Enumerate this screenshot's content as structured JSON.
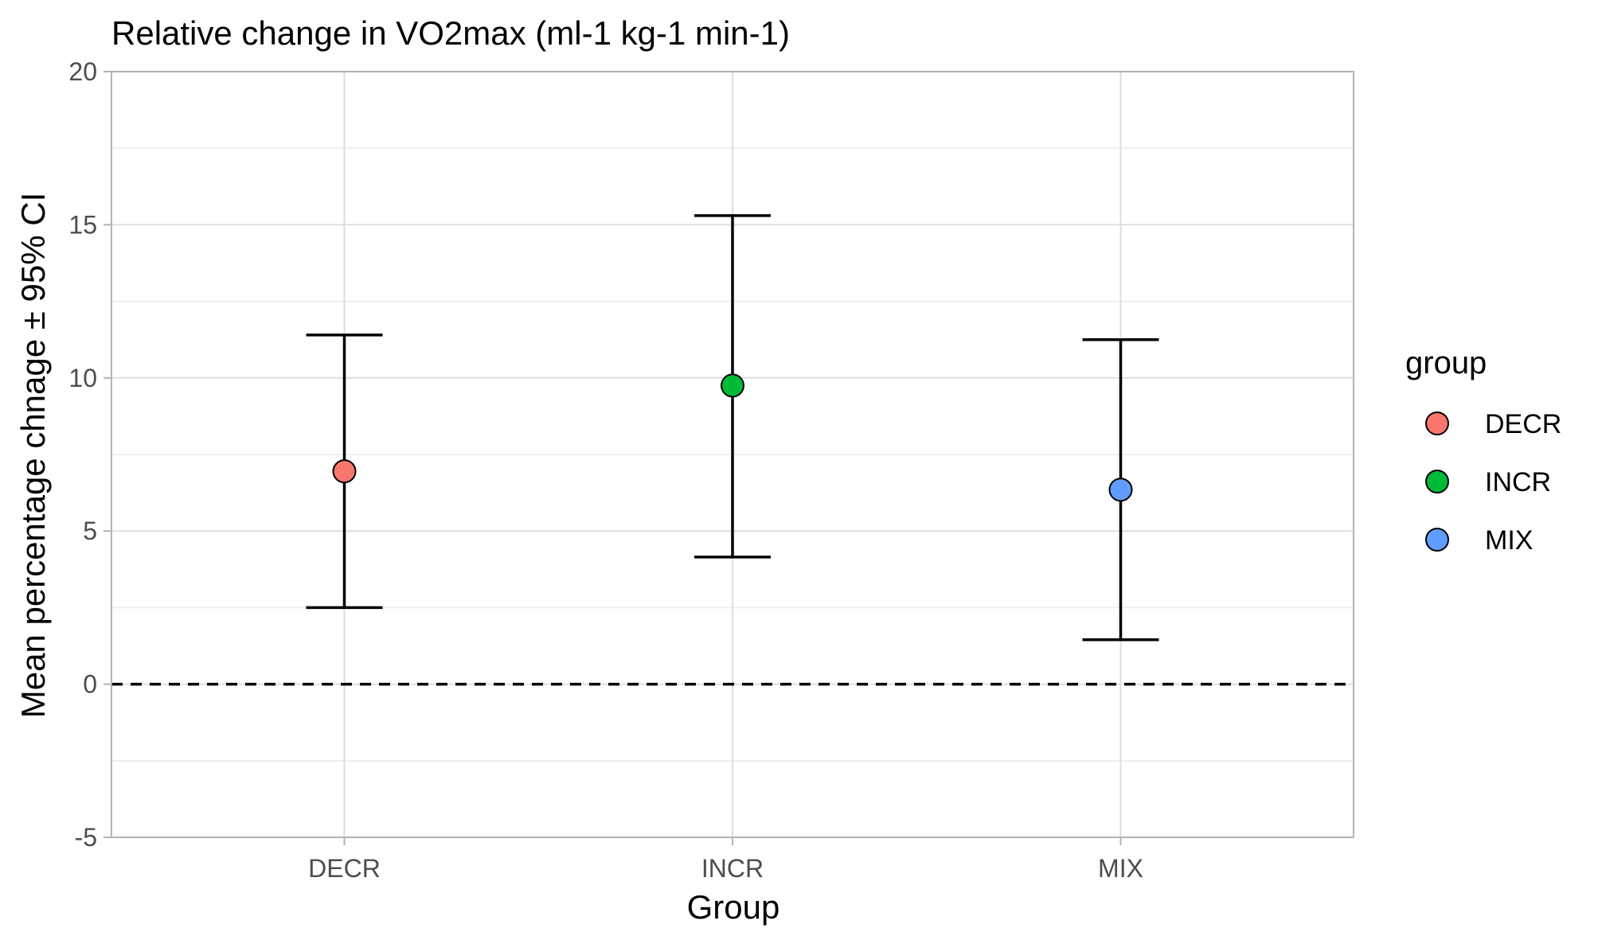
{
  "chart_data": {
    "type": "scatter",
    "title": "Relative change in  VO2max (ml-1 kg-1 min-1)",
    "xlabel": "Group",
    "ylabel": "Mean percentage chnage ± 95% CI",
    "categories": [
      "DECR",
      "INCR",
      "MIX"
    ],
    "ylim": [
      -5,
      20
    ],
    "yticks": [
      "-5",
      "0",
      "5",
      "10",
      "15",
      "20"
    ],
    "grid": true,
    "reference_line": {
      "y": 0,
      "style": "dashed"
    },
    "series": [
      {
        "name": "DECR",
        "mean": 6.95,
        "ci_low": 2.5,
        "ci_high": 11.4,
        "color": "#F8766D"
      },
      {
        "name": "INCR",
        "mean": 9.75,
        "ci_low": 4.15,
        "ci_high": 15.3,
        "color": "#00BA38"
      },
      {
        "name": "MIX",
        "mean": 6.35,
        "ci_low": 1.45,
        "ci_high": 11.25,
        "color": "#619CFF"
      }
    ],
    "legend": {
      "title": "group",
      "placement": "right",
      "entries": [
        "DECR",
        "INCR",
        "MIX"
      ]
    }
  }
}
